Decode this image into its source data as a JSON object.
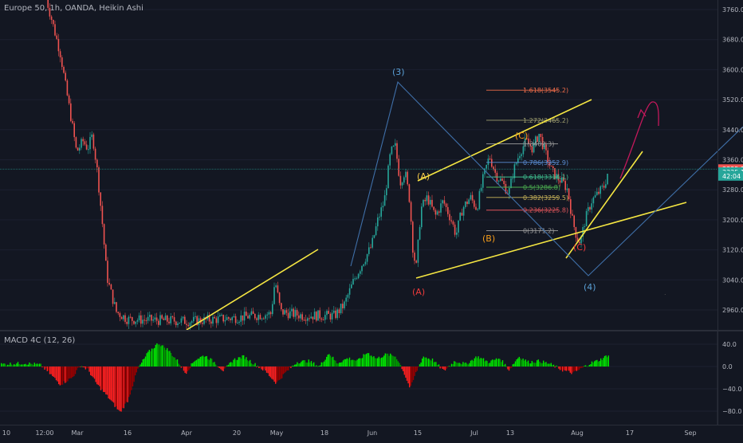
{
  "header": {
    "title": "Europe 50, 1h, OANDA, Heikin Ashi"
  },
  "macd": {
    "label": "MACD 4C (12, 26)",
    "ticks": [
      {
        "value": 40,
        "label": "40.0"
      },
      {
        "value": 0,
        "label": "0.0"
      },
      {
        "value": -40,
        "label": "−40.0"
      },
      {
        "value": -80,
        "label": "−80.0"
      }
    ]
  },
  "colors": {
    "background": "#131722",
    "up": "#26a69a",
    "down": "#ef5350",
    "macd_up": "#00e600",
    "macd_down": "#ff1f1f",
    "trendline": "#f5e642",
    "wave_line": "#3f6fa8",
    "price_line": "#26a69a"
  },
  "price_axis": {
    "ticks": [
      {
        "value": 3760,
        "label": "3760.0"
      },
      {
        "value": 3680,
        "label": "3680.0"
      },
      {
        "value": 3600,
        "label": "3600.0"
      },
      {
        "value": 3520,
        "label": "3520.0"
      },
      {
        "value": 3440,
        "label": "3440.0"
      },
      {
        "value": 3360,
        "label": "3360.0"
      },
      {
        "value": 3280,
        "label": "3280.0"
      },
      {
        "value": 3200,
        "label": "3200.0"
      },
      {
        "value": 3120,
        "label": "3120.0"
      },
      {
        "value": 3040,
        "label": "3040.0"
      },
      {
        "value": 2960,
        "label": "2960.0"
      }
    ],
    "badges": [
      {
        "label": "3335.1",
        "value": 3335.1,
        "color": "#ef5350"
      },
      {
        "label": "3335.1",
        "value": 3327.0,
        "color": "#26a69a"
      },
      {
        "label": "42:04",
        "value": 3317.0,
        "color": "#26a69a"
      }
    ]
  },
  "time_axis": {
    "ticks": [
      "10",
      "12:00",
      "Mar",
      "16",
      "Apr",
      "20",
      "May",
      "18",
      "Jun",
      "15",
      "Jul",
      "13",
      "Aug",
      "17",
      "Sep"
    ]
  },
  "chart_data": {
    "type": "candlestick",
    "title": "Europe 50, 1h, OANDA, Heikin Ashi",
    "ylim": [
      2935,
      3775
    ],
    "current_price": 3335.1,
    "price_path": [
      {
        "t": "start",
        "price": 3790
      },
      {
        "t": "12:00",
        "price": 3690
      },
      {
        "t": "12:00+",
        "price": 3560
      },
      {
        "t": "pre-Mar",
        "price": 3380
      },
      {
        "t": "Mar",
        "price": 3420
      },
      {
        "t": "Mar+",
        "price": 3300
      },
      {
        "t": "mid-Mar",
        "price": 2960
      },
      {
        "t": "Jun",
        "price": 3000
      },
      {
        "t": "Jun+",
        "price": 3390
      },
      {
        "t": "15 Jun",
        "price": 3060
      },
      {
        "t": "late Jun",
        "price": 3270
      },
      {
        "t": "Jul",
        "price": 3380
      },
      {
        "t": "mid-Jul",
        "price": 3420
      },
      {
        "t": "late Jul",
        "price": 3330
      },
      {
        "t": "Aug",
        "price": 3140
      },
      {
        "t": "Aug+",
        "price": 3335.1
      }
    ],
    "fibonacci": [
      {
        "ratio": "1.618",
        "label": "1.618(3545.2)",
        "price": 3545.2,
        "color": "#ef6c4a"
      },
      {
        "ratio": "1.272",
        "label": "1.272(3465.2)",
        "price": 3465.2,
        "color": "#9e9e6e"
      },
      {
        "ratio": "1",
        "label": "1(3402.3)",
        "price": 3402.3,
        "color": "#9e9e9e"
      },
      {
        "ratio": "0.786",
        "label": "0.786(3352.9)",
        "price": 3352.9,
        "color": "#5b8fd6"
      },
      {
        "ratio": "0.618",
        "label": "0.618(3314.1)",
        "price": 3314.1,
        "color": "#3fbf8f"
      },
      {
        "ratio": "0.5",
        "label": "0.5(3286.8)",
        "price": 3286.8,
        "color": "#4caf50"
      },
      {
        "ratio": "0.382",
        "label": "0.382(3259.5)",
        "price": 3259.5,
        "color": "#c9b45a"
      },
      {
        "ratio": "0.236",
        "label": "0.236(3225.8)",
        "price": 3225.8,
        "color": "#e0555a"
      },
      {
        "ratio": "0",
        "label": "0(3171.2)",
        "price": 3171.2,
        "color": "#9e9e9e"
      }
    ],
    "wave_labels": [
      {
        "label": "(3)",
        "price": 3565,
        "color": "#5aa0d6"
      },
      {
        "label": "(A)",
        "price": 3318,
        "color": "#f7c948"
      },
      {
        "label": "(B)",
        "price": 3152,
        "color": "#f59c1a"
      },
      {
        "label": "(C)",
        "price": 3398,
        "color": "#f59c1a"
      },
      {
        "label": "(A)",
        "price": 3003,
        "color": "#ef3b3b"
      },
      {
        "label": "(C)",
        "price": 3124,
        "color": "#ef3b3b"
      },
      {
        "label": "(4)",
        "price": 3018,
        "color": "#5aa0d6"
      }
    ],
    "macd_histogram": "sampled oscillator, range approx −85 to +45"
  }
}
